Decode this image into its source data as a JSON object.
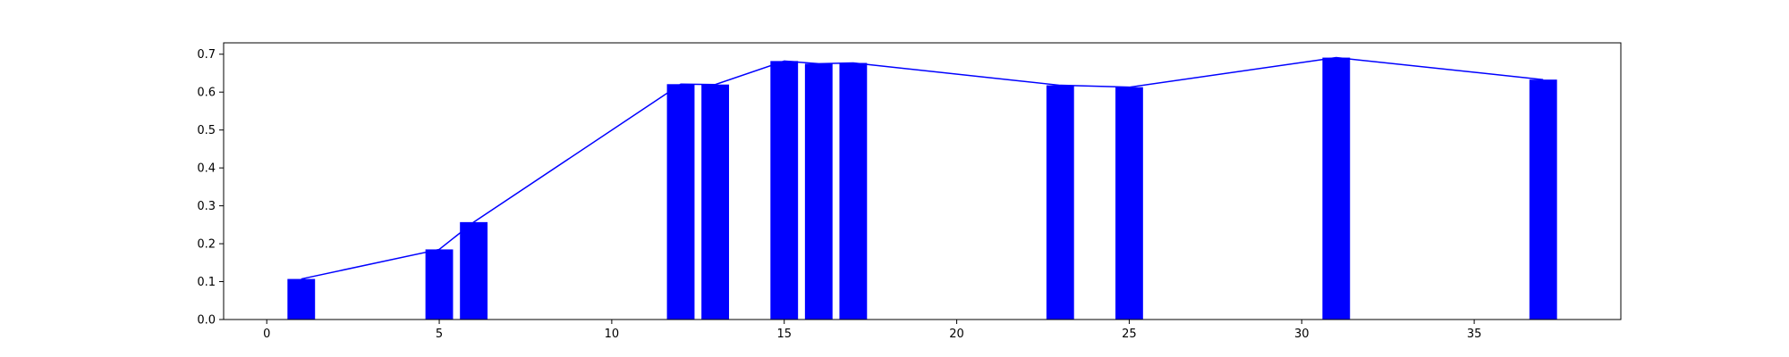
{
  "chart_data": {
    "type": "bar",
    "title": "",
    "xlabel": "",
    "ylabel": "",
    "xlim": [
      -1.25,
      39.25
    ],
    "ylim": [
      0,
      0.73
    ],
    "grid": false,
    "x_ticks": [
      0,
      5,
      10,
      15,
      20,
      25,
      30,
      35
    ],
    "y_ticks": [
      0.0,
      0.1,
      0.2,
      0.3,
      0.4,
      0.5,
      0.6,
      0.7
    ],
    "bar_width": 0.8,
    "x": [
      1,
      5,
      6,
      12,
      13,
      15,
      16,
      17,
      23,
      25,
      31,
      37
    ],
    "values": [
      0.107,
      0.185,
      0.257,
      0.621,
      0.62,
      0.682,
      0.675,
      0.677,
      0.618,
      0.613,
      0.691,
      0.633
    ],
    "series": [
      {
        "type": "bar",
        "color": "#0000ff"
      },
      {
        "type": "line",
        "color": "#0000ff"
      }
    ]
  }
}
